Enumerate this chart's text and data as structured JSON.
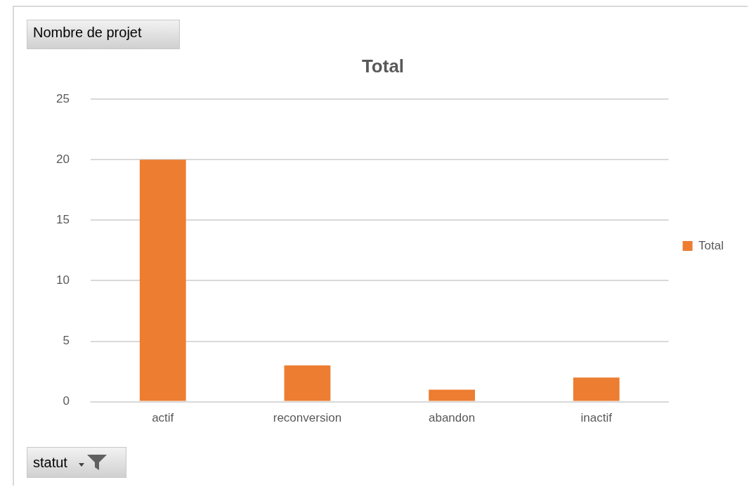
{
  "chart_data": {
    "type": "bar",
    "title": "Total",
    "categories": [
      "actif",
      "reconversion",
      "abandon",
      "inactif"
    ],
    "series": [
      {
        "name": "Total",
        "color": "#ed7d31",
        "values": [
          20,
          3,
          1,
          2
        ]
      }
    ],
    "ylim": [
      0,
      25
    ],
    "yticks": [
      0,
      5,
      10,
      15,
      20,
      25
    ],
    "grid": "y",
    "legend": "right",
    "annotations": [
      "Nombre de projet",
      "statut"
    ]
  }
}
